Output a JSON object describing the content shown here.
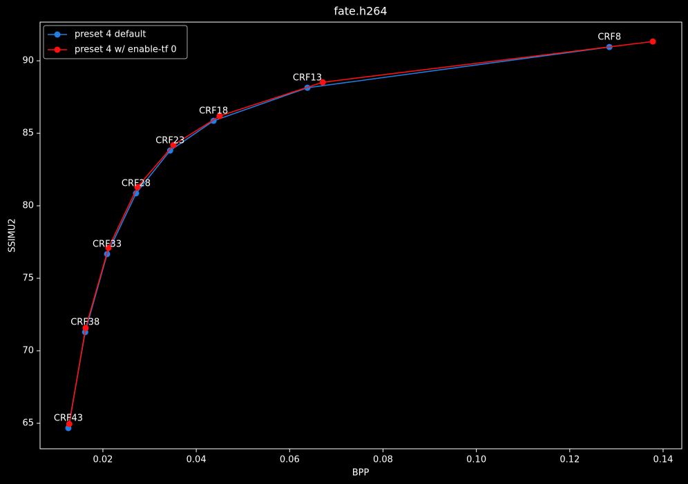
{
  "chart_data": {
    "type": "line",
    "title": "fate.h264",
    "xlabel": "BPP",
    "ylabel": "SSIMU2",
    "xlim": [
      0.00654,
      0.144
    ],
    "ylim": [
      63.24,
      92.67
    ],
    "xticks": [
      0.02,
      0.04,
      0.06,
      0.08,
      {
        "value": 0.1,
        "label": "0.10"
      },
      0.12,
      0.14
    ],
    "yticks": [
      65,
      70,
      75,
      80,
      85,
      90
    ],
    "grid": false,
    "legend": "upper left",
    "annotations": [
      "CRF43",
      "CRF38",
      "CRF33",
      "CRF28",
      "CRF23",
      "CRF18",
      "CRF13",
      "CRF8"
    ],
    "series": [
      {
        "name": "preset 4 default",
        "color": "#1f7fe6",
        "x": [
          0.0126,
          0.0162,
          0.0209,
          0.0271,
          0.0344,
          0.0437,
          0.0638,
          0.1285
        ],
        "values": [
          64.67,
          71.29,
          76.67,
          80.86,
          83.81,
          85.86,
          88.14,
          90.95
        ]
      },
      {
        "name": "preset 4 w/ enable-tf 0",
        "color": "#ff1010",
        "x": [
          0.0128,
          0.0163,
          0.0212,
          0.0274,
          0.0351,
          0.045,
          0.0671,
          0.1378
        ],
        "values": [
          64.95,
          71.57,
          77.1,
          81.29,
          84.19,
          86.19,
          88.52,
          91.33
        ]
      }
    ]
  }
}
